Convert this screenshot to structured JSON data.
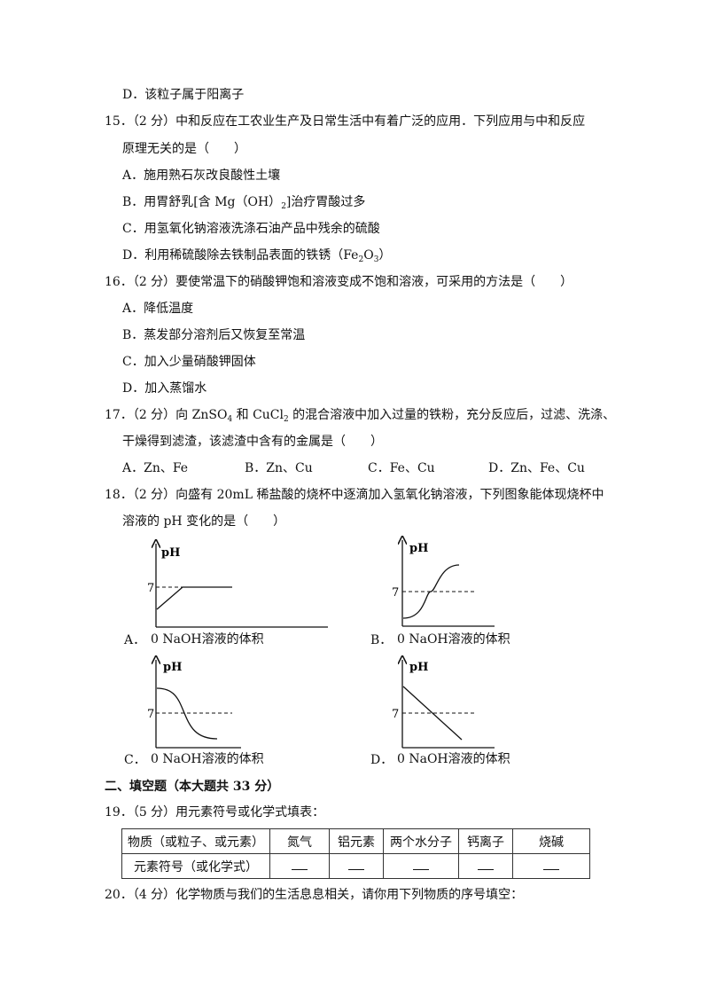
{
  "q14": {
    "option_d": "D．该粒子属于阳离子"
  },
  "q15": {
    "stem_line1": "15．（2 分）中和反应在工农业生产及日常生活中有着广泛的应用．下列应用与中和反应",
    "stem_line2": "原理无关的是（　　）",
    "option_a": "A．施用熟石灰改良酸性土壤",
    "option_b_pre": "B．用胃舒乳[含 Mg（OH）",
    "option_b_sub": "2",
    "option_b_post": "]治疗胃酸过多",
    "option_c": "C．用氢氧化钠溶液洗涤石油产品中残余的硫酸",
    "option_d_pre": "D．利用稀硫酸除去铁制品表面的铁锈（Fe",
    "option_d_sub1": "2",
    "option_d_mid": "O",
    "option_d_sub2": "3",
    "option_d_post": "）"
  },
  "q16": {
    "stem": "16．（2 分）要使常温下的硝酸钾饱和溶液变成不饱和溶液，可采用的方法是（　　）",
    "option_a": "A．降低温度",
    "option_b": "B．蒸发部分溶剂后又恢复至常温",
    "option_c": "C．加入少量硝酸钾固体",
    "option_d": "D．加入蒸馏水"
  },
  "q17": {
    "stem1_pre": "17．（2 分）向 ZnSO",
    "stem1_sub1": "4",
    "stem1_mid": " 和 CuCl",
    "stem1_sub2": "2",
    "stem1_post": " 的混合溶液中加入过量的铁粉，充分反应后，过滤、洗涤、",
    "stem_line2": "干燥得到滤渣，该滤渣中含有的金属是（　　）",
    "option_a": "A．Zn、Fe",
    "option_b": "B．Zn、Cu",
    "option_c": "C．Fe、Cu",
    "option_d": "D．Zn、Fe、Cu"
  },
  "q18": {
    "stem_line1": "18．（2 分）向盛有 20mL 稀盐酸的烧杯中逐滴加入氢氧化钠溶液，下列图象能体现烧杯中",
    "stem_line2": "溶液的 pH 变化的是（　　）",
    "graphs": [
      {
        "letter": "A．",
        "ylabel": "pH",
        "seven": "7",
        "xlabel": "0 NaOH溶液的体积"
      },
      {
        "letter": "B．",
        "ylabel": "pH",
        "seven": "7",
        "xlabel": "0 NaOH溶液的体积"
      },
      {
        "letter": "C．",
        "ylabel": "pH",
        "seven": "7",
        "xlabel": "0 NaOH溶液的体积"
      },
      {
        "letter": "D．",
        "ylabel": "pH",
        "seven": "7",
        "xlabel": "0 NaOH溶液的体积"
      }
    ]
  },
  "section2": {
    "title": "二、填空题（本大题共 33 分）"
  },
  "q19": {
    "stem": "19．（5 分）用元素符号或化学式填表：",
    "row1": [
      "物质（或粒子、或元素）",
      "氮气",
      "铝元素",
      "两个水分子",
      "钙离子",
      "烧碱"
    ],
    "row2_label": "元素符号（或化学式）"
  },
  "q20": {
    "stem": "20．（4 分）化学物质与我们的生活息息相关，请你用下列物质的序号填空："
  }
}
